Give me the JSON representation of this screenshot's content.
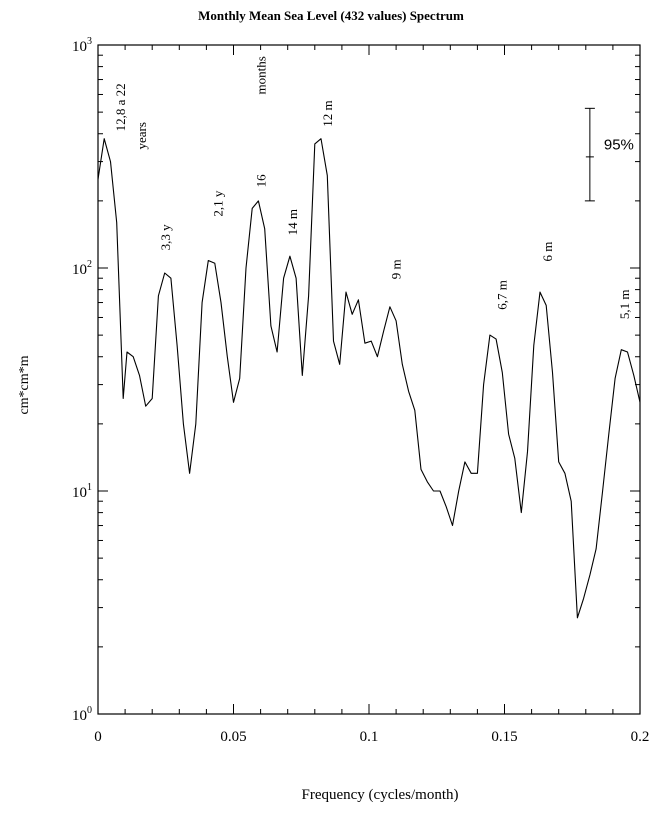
{
  "chart_data": {
    "type": "line",
    "title": "Monthly Mean Sea Level (432 values) Spectrum",
    "xlabel": "Frequency  (cycles/month)",
    "ylabel": "cm*cm*m",
    "xlim": [
      0,
      0.2
    ],
    "ylim": [
      1,
      1000
    ],
    "yscale": "log",
    "grid": false,
    "x_ticks": [
      {
        "v": 0,
        "label": "0"
      },
      {
        "v": 0.05,
        "label": "0.05"
      },
      {
        "v": 0.1,
        "label": "0.1"
      },
      {
        "v": 0.15,
        "label": "0.15"
      },
      {
        "v": 0.2,
        "label": "0.2"
      }
    ],
    "y_ticks": [
      {
        "v": 1,
        "base": "10",
        "exp": "0"
      },
      {
        "v": 10,
        "base": "10",
        "exp": "1"
      },
      {
        "v": 100,
        "base": "10",
        "exp": "2"
      },
      {
        "v": 1000,
        "base": "10",
        "exp": "3"
      }
    ],
    "series": [
      {
        "x": [
          0,
          0.0023,
          0.0046,
          0.0069,
          0.0093,
          0.0107,
          0.013,
          0.0153,
          0.0176,
          0.02,
          0.0223,
          0.0246,
          0.0269,
          0.0292,
          0.0315,
          0.0338,
          0.0361,
          0.0384,
          0.0407,
          0.0431,
          0.0454,
          0.0477,
          0.05,
          0.0523,
          0.0546,
          0.0569,
          0.0592,
          0.0615,
          0.0638,
          0.0661,
          0.0685,
          0.0708,
          0.0731,
          0.0754,
          0.0777,
          0.08,
          0.0823,
          0.0846,
          0.0869,
          0.0892,
          0.0915,
          0.0938,
          0.0961,
          0.0985,
          0.1008,
          0.1031,
          0.1054,
          0.1077,
          0.11,
          0.1123,
          0.1146,
          0.1169,
          0.1192,
          0.1215,
          0.1238,
          0.1262,
          0.1285,
          0.1308,
          0.1331,
          0.1354,
          0.1377,
          0.14,
          0.1423,
          0.1446,
          0.1469,
          0.1492,
          0.1515,
          0.1538,
          0.1562,
          0.1585,
          0.1608,
          0.1631,
          0.1654,
          0.1677,
          0.17,
          0.1723,
          0.1746,
          0.1769,
          0.1792,
          0.1815,
          0.1838,
          0.1862,
          0.1885,
          0.1908,
          0.1931,
          0.1954,
          0.1977,
          0.2
        ],
        "y": [
          250,
          380,
          300,
          160,
          26,
          42,
          40,
          33,
          24,
          26,
          75,
          95,
          90,
          45,
          20,
          12,
          20,
          70,
          108,
          105,
          70,
          40,
          25,
          32,
          100,
          185,
          200,
          150,
          55,
          42,
          90,
          113,
          90,
          33,
          75,
          360,
          380,
          260,
          47,
          37,
          78,
          62,
          72,
          46,
          47,
          40,
          52,
          67,
          58,
          37,
          28,
          23,
          12.5,
          11,
          10,
          10,
          8.5,
          7,
          10,
          13.5,
          12,
          12,
          30,
          50,
          48,
          34,
          18,
          14,
          8,
          15,
          45,
          78,
          68,
          34,
          13.5,
          12,
          9,
          2.7,
          3.3,
          4.2,
          5.5,
          10,
          18,
          32,
          43,
          42,
          33,
          25
        ]
      }
    ],
    "annotations": [
      {
        "x": 0.01,
        "y": 410,
        "text": "12,8 a 22"
      },
      {
        "x": 0.0178,
        "y": 340,
        "text": "years"
      },
      {
        "x": 0.0265,
        "y": 120,
        "text": "3,3 y"
      },
      {
        "x": 0.046,
        "y": 170,
        "text": "2,1 y"
      },
      {
        "x": 0.0619,
        "y": 230,
        "text": "16"
      },
      {
        "x": 0.0619,
        "y": 600,
        "text": "months"
      },
      {
        "x": 0.0735,
        "y": 140,
        "text": "14 m"
      },
      {
        "x": 0.0863,
        "y": 430,
        "text": "12 m"
      },
      {
        "x": 0.1116,
        "y": 89,
        "text": "9 m"
      },
      {
        "x": 0.1507,
        "y": 65,
        "text": "6,7 m"
      },
      {
        "x": 0.1676,
        "y": 107,
        "text": "6 m"
      },
      {
        "x": 0.196,
        "y": 59,
        "text": "5,1 m"
      }
    ],
    "confidence_interval": {
      "label": "95%",
      "y_low": 200,
      "y_high": 520,
      "y_mid": 315,
      "x": 0.1815
    }
  }
}
